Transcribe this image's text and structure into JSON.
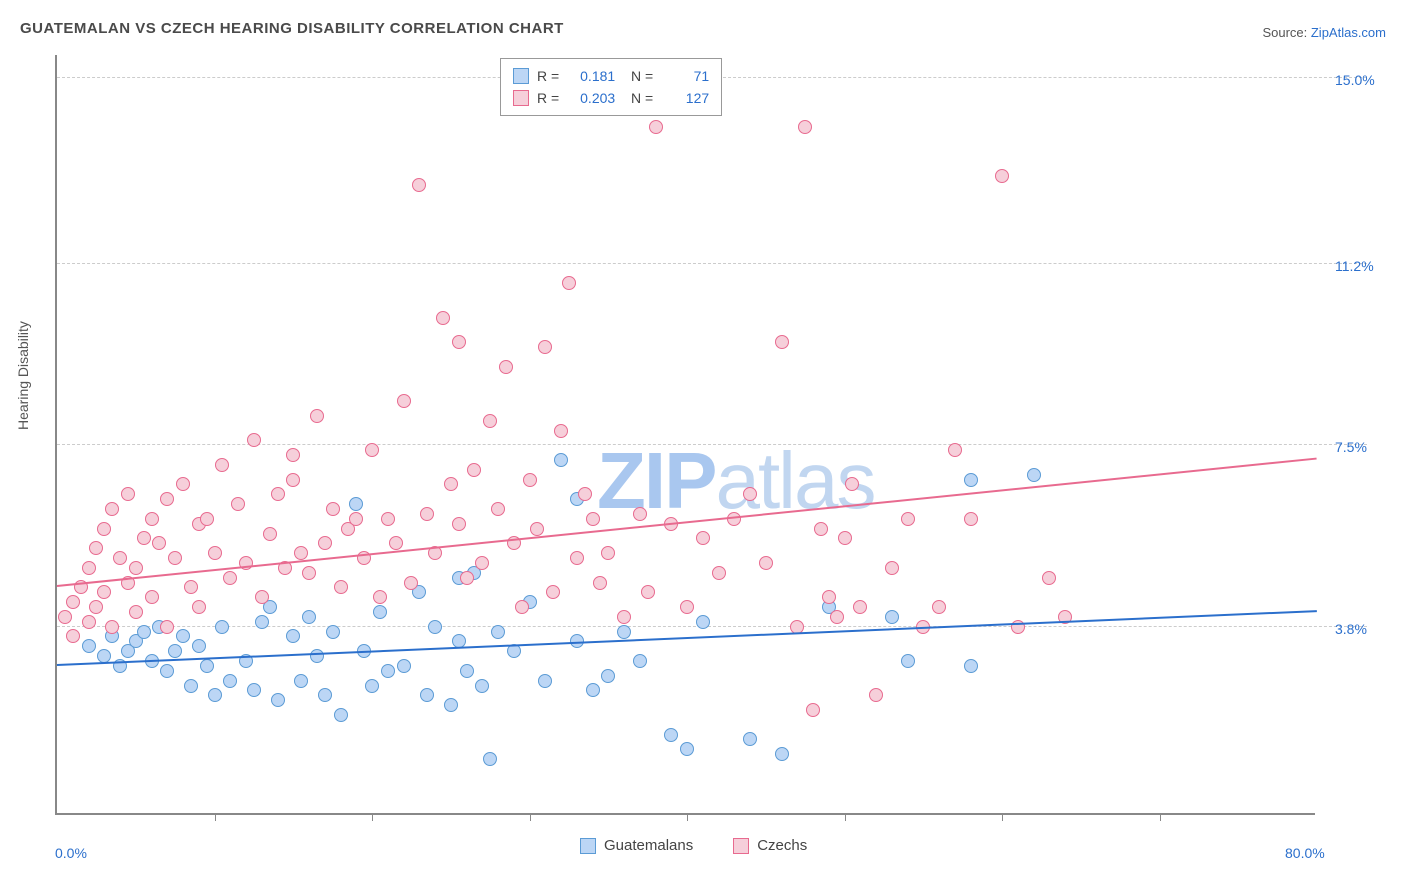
{
  "title": "GUATEMALAN VS CZECH HEARING DISABILITY CORRELATION CHART",
  "source_prefix": "Source: ",
  "source_label": "ZipAtlas.com",
  "watermark": {
    "bold": "ZIP",
    "light": "atlas"
  },
  "y_axis_label": "Hearing Disability",
  "chart": {
    "type": "scatter",
    "xlim": [
      0,
      80
    ],
    "ylim": [
      0,
      15.5
    ],
    "x_tick_step": 10,
    "x_labels": [
      {
        "x": 0,
        "text": "0.0%"
      },
      {
        "x": 80,
        "text": "80.0%"
      }
    ],
    "y_labels": [
      {
        "y": 3.8,
        "text": "3.8%"
      },
      {
        "y": 7.5,
        "text": "7.5%"
      },
      {
        "y": 11.2,
        "text": "11.2%"
      },
      {
        "y": 15.0,
        "text": "15.0%"
      }
    ],
    "grid_color": "#cccccc",
    "background_color": "#ffffff",
    "series": [
      {
        "name": "Guatemalans",
        "fill": "#bcd6f5",
        "stroke": "#5b9bd5",
        "line_color": "#2b6fcc",
        "R": "0.181",
        "N": "71",
        "trend": {
          "x1": 0,
          "y1": 3.0,
          "x2": 80,
          "y2": 4.1
        },
        "points": [
          [
            2,
            3.4
          ],
          [
            3,
            3.2
          ],
          [
            3.5,
            3.6
          ],
          [
            4,
            3.0
          ],
          [
            4.5,
            3.3
          ],
          [
            5,
            3.5
          ],
          [
            5.5,
            3.7
          ],
          [
            6,
            3.1
          ],
          [
            6.5,
            3.8
          ],
          [
            7,
            2.9
          ],
          [
            7.5,
            3.3
          ],
          [
            8,
            3.6
          ],
          [
            8.5,
            2.6
          ],
          [
            9,
            3.4
          ],
          [
            9.5,
            3.0
          ],
          [
            10,
            2.4
          ],
          [
            10.5,
            3.8
          ],
          [
            11,
            2.7
          ],
          [
            12,
            3.1
          ],
          [
            12.5,
            2.5
          ],
          [
            13,
            3.9
          ],
          [
            13.5,
            4.2
          ],
          [
            14,
            2.3
          ],
          [
            15,
            3.6
          ],
          [
            15.5,
            2.7
          ],
          [
            16,
            4.0
          ],
          [
            16.5,
            3.2
          ],
          [
            17,
            2.4
          ],
          [
            17.5,
            3.7
          ],
          [
            18,
            2.0
          ],
          [
            19,
            6.3
          ],
          [
            19.5,
            3.3
          ],
          [
            20,
            2.6
          ],
          [
            20.5,
            4.1
          ],
          [
            21,
            2.9
          ],
          [
            22,
            3.0
          ],
          [
            23,
            4.5
          ],
          [
            23.5,
            2.4
          ],
          [
            24,
            3.8
          ],
          [
            25,
            2.2
          ],
          [
            25.5,
            3.5
          ],
          [
            25.5,
            4.8
          ],
          [
            26,
            2.9
          ],
          [
            26.5,
            4.9
          ],
          [
            27,
            2.6
          ],
          [
            27.5,
            1.1
          ],
          [
            28,
            3.7
          ],
          [
            29,
            3.3
          ],
          [
            30,
            4.3
          ],
          [
            31,
            2.7
          ],
          [
            32,
            7.2
          ],
          [
            33,
            3.5
          ],
          [
            33,
            6.4
          ],
          [
            34,
            2.5
          ],
          [
            35,
            2.8
          ],
          [
            36,
            3.7
          ],
          [
            37,
            3.1
          ],
          [
            39,
            1.6
          ],
          [
            40,
            1.3
          ],
          [
            41,
            3.9
          ],
          [
            44,
            1.5
          ],
          [
            46,
            1.2
          ],
          [
            49,
            4.2
          ],
          [
            53,
            4.0
          ],
          [
            54,
            3.1
          ],
          [
            58,
            6.8
          ],
          [
            58,
            3.0
          ],
          [
            62,
            6.9
          ]
        ]
      },
      {
        "name": "Czechs",
        "fill": "#f6cfda",
        "stroke": "#e86a8f",
        "line_color": "#e86a8f",
        "R": "0.203",
        "N": "127",
        "trend": {
          "x1": 0,
          "y1": 4.6,
          "x2": 80,
          "y2": 7.2
        },
        "points": [
          [
            0.5,
            4.0
          ],
          [
            1,
            4.3
          ],
          [
            1,
            3.6
          ],
          [
            1.5,
            4.6
          ],
          [
            2,
            3.9
          ],
          [
            2,
            5.0
          ],
          [
            2.5,
            4.2
          ],
          [
            2.5,
            5.4
          ],
          [
            3,
            4.5
          ],
          [
            3,
            5.8
          ],
          [
            3.5,
            3.8
          ],
          [
            3.5,
            6.2
          ],
          [
            4,
            5.2
          ],
          [
            4.5,
            4.7
          ],
          [
            4.5,
            6.5
          ],
          [
            5,
            5.0
          ],
          [
            5,
            4.1
          ],
          [
            5.5,
            5.6
          ],
          [
            6,
            6.0
          ],
          [
            6,
            4.4
          ],
          [
            6.5,
            5.5
          ],
          [
            7,
            3.8
          ],
          [
            7,
            6.4
          ],
          [
            7.5,
            5.2
          ],
          [
            8,
            6.7
          ],
          [
            8.5,
            4.6
          ],
          [
            9,
            5.9
          ],
          [
            9,
            4.2
          ],
          [
            9.5,
            6.0
          ],
          [
            10,
            5.3
          ],
          [
            10.5,
            7.1
          ],
          [
            11,
            4.8
          ],
          [
            11.5,
            6.3
          ],
          [
            12,
            5.1
          ],
          [
            12.5,
            7.6
          ],
          [
            13,
            4.4
          ],
          [
            13.5,
            5.7
          ],
          [
            14,
            6.5
          ],
          [
            14.5,
            5.0
          ],
          [
            15,
            6.8
          ],
          [
            15,
            7.3
          ],
          [
            15.5,
            5.3
          ],
          [
            16,
            4.9
          ],
          [
            16.5,
            8.1
          ],
          [
            17,
            5.5
          ],
          [
            17.5,
            6.2
          ],
          [
            18,
            4.6
          ],
          [
            18.5,
            5.8
          ],
          [
            19,
            6.0
          ],
          [
            19.5,
            5.2
          ],
          [
            20,
            7.4
          ],
          [
            20.5,
            4.4
          ],
          [
            21,
            6.0
          ],
          [
            21.5,
            5.5
          ],
          [
            22,
            8.4
          ],
          [
            22.5,
            4.7
          ],
          [
            23,
            12.8
          ],
          [
            23.5,
            6.1
          ],
          [
            24,
            5.3
          ],
          [
            24.5,
            10.1
          ],
          [
            25,
            6.7
          ],
          [
            25.5,
            5.9
          ],
          [
            25.5,
            9.6
          ],
          [
            26,
            4.8
          ],
          [
            26.5,
            7.0
          ],
          [
            27,
            5.1
          ],
          [
            27.5,
            8.0
          ],
          [
            28,
            6.2
          ],
          [
            28.5,
            9.1
          ],
          [
            29,
            5.5
          ],
          [
            29.5,
            4.2
          ],
          [
            30,
            6.8
          ],
          [
            30.5,
            5.8
          ],
          [
            31,
            9.5
          ],
          [
            31.5,
            4.5
          ],
          [
            32,
            7.8
          ],
          [
            32.5,
            10.8
          ],
          [
            33,
            5.2
          ],
          [
            33.5,
            6.5
          ],
          [
            34,
            6.0
          ],
          [
            34.5,
            4.7
          ],
          [
            35,
            5.3
          ],
          [
            36,
            4.0
          ],
          [
            37,
            6.1
          ],
          [
            37.5,
            4.5
          ],
          [
            38,
            14.0
          ],
          [
            39,
            5.9
          ],
          [
            40,
            4.2
          ],
          [
            41,
            5.6
          ],
          [
            42,
            4.9
          ],
          [
            43,
            6.0
          ],
          [
            44,
            6.5
          ],
          [
            45,
            5.1
          ],
          [
            46,
            9.6
          ],
          [
            47,
            3.8
          ],
          [
            47.5,
            14.0
          ],
          [
            48,
            2.1
          ],
          [
            48.5,
            5.8
          ],
          [
            49,
            4.4
          ],
          [
            49.5,
            4.0
          ],
          [
            50,
            5.6
          ],
          [
            50.5,
            6.7
          ],
          [
            51,
            4.2
          ],
          [
            52,
            2.4
          ],
          [
            53,
            5.0
          ],
          [
            54,
            6.0
          ],
          [
            55,
            3.8
          ],
          [
            56,
            4.2
          ],
          [
            57,
            7.4
          ],
          [
            58,
            6.0
          ],
          [
            60,
            13.0
          ],
          [
            61,
            3.8
          ],
          [
            63,
            4.8
          ],
          [
            64,
            4.0
          ]
        ]
      }
    ]
  },
  "legend_bottom": [
    {
      "name": "Guatemalans",
      "fill": "#bcd6f5",
      "stroke": "#5b9bd5"
    },
    {
      "name": "Czechs",
      "fill": "#f6cfda",
      "stroke": "#e86a8f"
    }
  ]
}
